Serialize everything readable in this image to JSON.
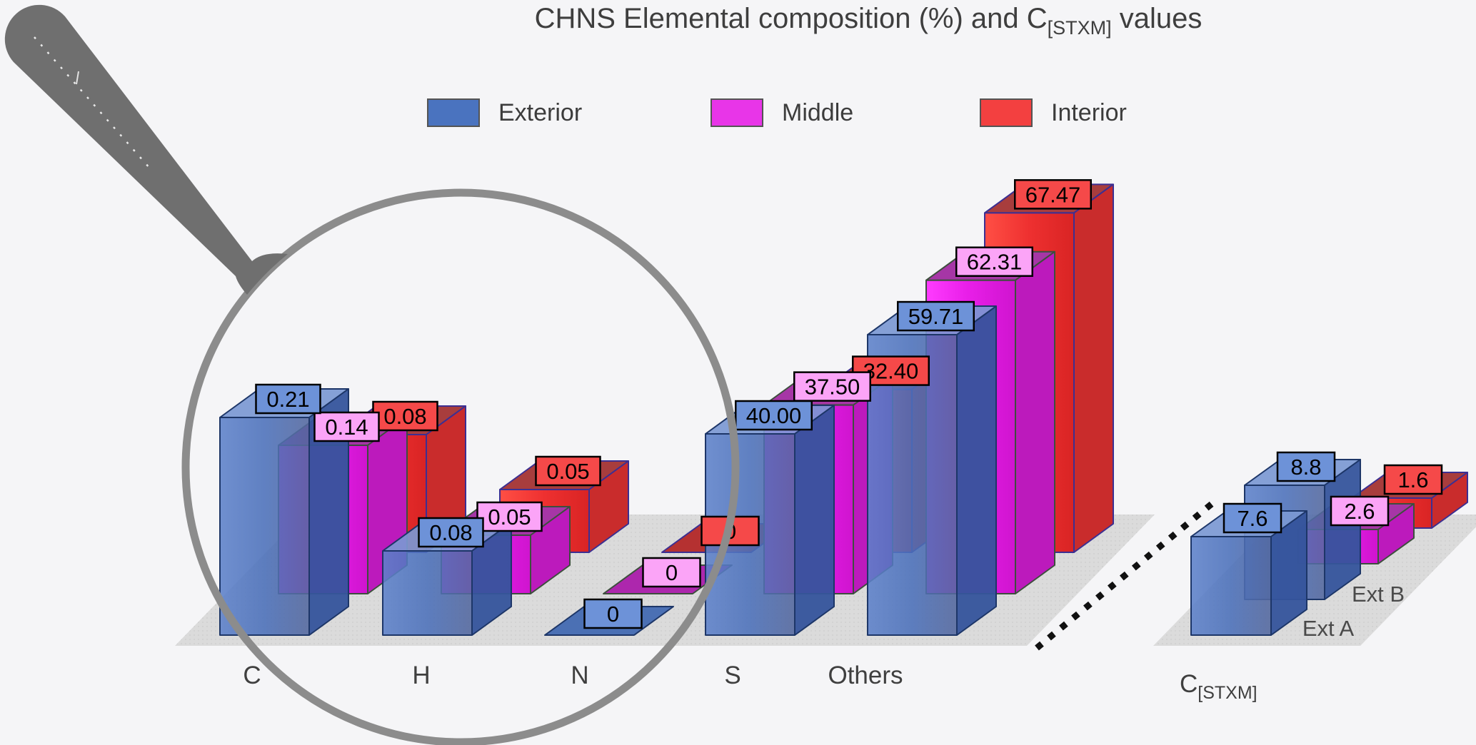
{
  "title": {
    "prefix": "CHNS Elemental composition (%) and C",
    "subscript": "[STXM]",
    "suffix": " values"
  },
  "legend": [
    {
      "label": "Exterior",
      "color": "#4a73bf"
    },
    {
      "label": "Middle",
      "color": "#e835e8"
    },
    {
      "label": "Interior",
      "color": "#f34040"
    }
  ],
  "chart_data": {
    "type": "bar",
    "projection": "3d",
    "title": "CHNS Elemental composition (%) and C[STXM] values",
    "categories": [
      "C",
      "H",
      "N",
      "S",
      "Others"
    ],
    "series": [
      {
        "name": "Exterior",
        "color": "#4a73bf",
        "values": [
          0.21,
          0.08,
          0,
          40.0,
          59.71
        ],
        "labels": [
          "0.21",
          "0.08",
          "0",
          "40.00",
          "59.71"
        ]
      },
      {
        "name": "Middle",
        "color": "#e835e8",
        "values": [
          0.14,
          0.05,
          0,
          37.5,
          62.31
        ],
        "labels": [
          "0.14",
          "0.05",
          "0",
          "37.50",
          "62.31"
        ]
      },
      {
        "name": "Interior",
        "color": "#f34040",
        "values": [
          0.08,
          0.05,
          0,
          32.4,
          67.47
        ],
        "labels": [
          "0.08",
          "0.05",
          "0",
          "32.40",
          "67.47"
        ]
      }
    ],
    "stxm_group": {
      "category": "C[STXM]",
      "axis_label": {
        "base": "C",
        "subscript": "[STXM]"
      },
      "row_labels": [
        "Ext A",
        "Ext B"
      ],
      "bars": [
        {
          "row": "Ext A",
          "series": "Exterior",
          "value": 7.6,
          "label": "7.6"
        },
        {
          "row": "Ext B",
          "series": "Exterior",
          "value": 8.8,
          "label": "8.8"
        },
        {
          "row": "",
          "series": "Middle",
          "value": 2.6,
          "label": "2.6"
        },
        {
          "row": "",
          "series": "Interior",
          "value": 1.6,
          "label": "1.6"
        }
      ]
    },
    "value_label_colors": {
      "Exterior": "#6d92d8",
      "Middle": "#fba4f7",
      "Interior": "#f54949"
    },
    "legend_position": "top",
    "annotation": "magnifying glass overlays the C, H and N groups"
  }
}
